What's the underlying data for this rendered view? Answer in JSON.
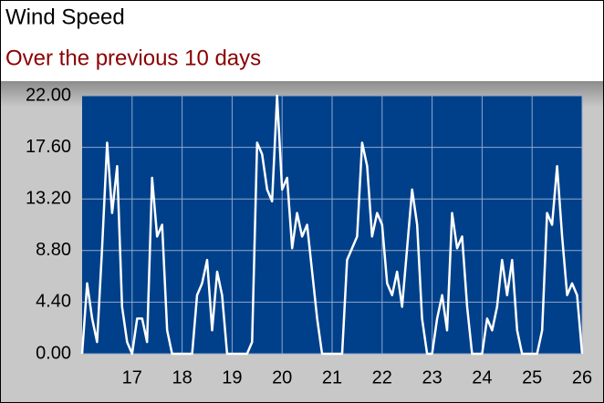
{
  "chart_data": {
    "type": "line",
    "title": "Wind Speed",
    "subtitle": "Over the previous 10 days",
    "x": [
      16.0,
      16.1,
      16.2,
      16.3,
      16.4,
      16.5,
      16.6,
      16.7,
      16.8,
      16.9,
      17.0,
      17.1,
      17.2,
      17.3,
      17.4,
      17.5,
      17.6,
      17.7,
      17.8,
      17.9,
      18.0,
      18.1,
      18.2,
      18.3,
      18.4,
      18.5,
      18.6,
      18.7,
      18.8,
      18.9,
      19.0,
      19.1,
      19.2,
      19.3,
      19.4,
      19.5,
      19.6,
      19.7,
      19.8,
      19.9,
      20.0,
      20.1,
      20.2,
      20.3,
      20.4,
      20.5,
      20.6,
      20.7,
      20.8,
      20.9,
      21.0,
      21.1,
      21.2,
      21.3,
      21.4,
      21.5,
      21.6,
      21.7,
      21.8,
      21.9,
      22.0,
      22.1,
      22.2,
      22.3,
      22.4,
      22.5,
      22.6,
      22.7,
      22.8,
      22.9,
      23.0,
      23.1,
      23.2,
      23.3,
      23.4,
      23.5,
      23.6,
      23.7,
      23.8,
      23.9,
      24.0,
      24.1,
      24.2,
      24.3,
      24.4,
      24.5,
      24.6,
      24.7,
      24.8,
      24.9,
      25.0,
      25.1,
      25.2,
      25.3,
      25.4,
      25.5,
      25.6,
      25.7,
      25.8,
      25.9,
      26.0
    ],
    "values": [
      0,
      6,
      3,
      1,
      9,
      18,
      12,
      16,
      4,
      1,
      0,
      3,
      3,
      1,
      15,
      10,
      11,
      2,
      0,
      0,
      0,
      0,
      0,
      5,
      6,
      8,
      2,
      7,
      5,
      0,
      0,
      0,
      0,
      0,
      1,
      18,
      17,
      14,
      13,
      22,
      14,
      15,
      9,
      12,
      10,
      11,
      7,
      3,
      0,
      0,
      0,
      0,
      0,
      8,
      9,
      10,
      18,
      16,
      10,
      12,
      11,
      6,
      5,
      7,
      4,
      9,
      14,
      11,
      3,
      0,
      0,
      3,
      5,
      2,
      12,
      9,
      10,
      4,
      0,
      0,
      0,
      3,
      2,
      4,
      8,
      5,
      8,
      2,
      0,
      0,
      0,
      0,
      2,
      12,
      11,
      16,
      10,
      5,
      6,
      5,
      0
    ],
    "color": "#ffffff",
    "xlim": [
      16,
      26
    ],
    "xticks": [
      17,
      18,
      19,
      20,
      21,
      22,
      23,
      24,
      25,
      26
    ],
    "ylim": [
      0,
      22
    ],
    "yticks": [
      {
        "value": 0,
        "label": "0.00"
      },
      {
        "value": 4.4,
        "label": "4.40"
      },
      {
        "value": 8.8,
        "label": "8.80"
      },
      {
        "value": 13.2,
        "label": "13.20"
      },
      {
        "value": 17.6,
        "label": "17.60"
      },
      {
        "value": 22,
        "label": "22.00"
      }
    ],
    "grid": true
  }
}
